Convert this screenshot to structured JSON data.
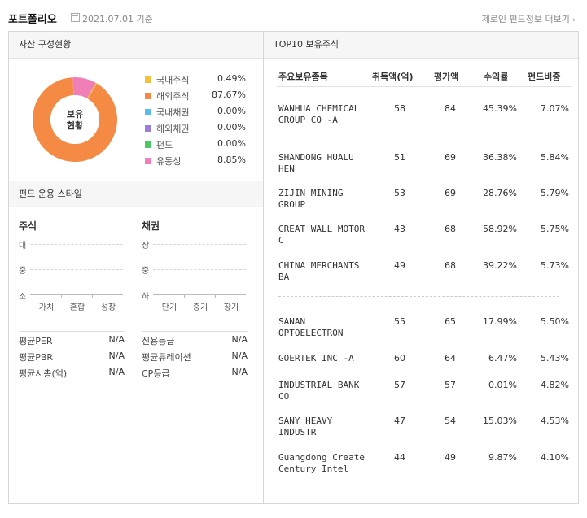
{
  "header": {
    "title": "포트폴리오",
    "date": "2021.07.01",
    "date_suffix": "기준",
    "more_link": "제로인 펀드정보 더보기"
  },
  "asset": {
    "title": "자산 구성현황",
    "donut_label_1": "보유",
    "donut_label_2": "현황",
    "items": [
      {
        "name": "국내주식",
        "value": "0.49%",
        "pct": 0.49,
        "color": "#f2c33a"
      },
      {
        "name": "해외주식",
        "value": "87.67%",
        "pct": 87.67,
        "color": "#f48a43"
      },
      {
        "name": "국내채권",
        "value": "0.00%",
        "pct": 0.0,
        "color": "#58bde8"
      },
      {
        "name": "해외채권",
        "value": "0.00%",
        "pct": 0.0,
        "color": "#9a7fd8"
      },
      {
        "name": "펀드",
        "value": "0.00%",
        "pct": 0.0,
        "color": "#4bc765"
      },
      {
        "name": "유동성",
        "value": "8.85%",
        "pct": 8.85,
        "color": "#f07fb8"
      }
    ]
  },
  "style": {
    "title": "펀드 운용 스타일",
    "stock": {
      "title": "주식",
      "y": [
        "대",
        "중",
        "소"
      ],
      "x": [
        "가치",
        "혼합",
        "성장"
      ]
    },
    "bond": {
      "title": "채권",
      "y": [
        "상",
        "중",
        "하"
      ],
      "x": [
        "단기",
        "중기",
        "장기"
      ]
    },
    "stock_metrics": [
      {
        "k": "평균PER",
        "v": "N/A"
      },
      {
        "k": "평균PBR",
        "v": "N/A"
      },
      {
        "k": "평균시총(억)",
        "v": "N/A"
      }
    ],
    "bond_metrics": [
      {
        "k": "신용등급",
        "v": "N/A"
      },
      {
        "k": "평균듀레이션",
        "v": "N/A"
      },
      {
        "k": "CP등급",
        "v": "N/A"
      }
    ]
  },
  "top10": {
    "title": "TOP10 보유주식",
    "columns": [
      "주요보유종목",
      "취득액(억)",
      "평가액",
      "수익률",
      "펀드비중"
    ],
    "rows": [
      {
        "name": "WANHUA CHEMICAL GROUP CO -A",
        "cost": "58",
        "value": "84",
        "ret": "45.39%",
        "weight": "7.07%"
      },
      {
        "name": "SHANDONG HUALU HEN",
        "cost": "51",
        "value": "69",
        "ret": "36.38%",
        "weight": "5.84%"
      },
      {
        "name": "ZIJIN MINING GROUP",
        "cost": "53",
        "value": "69",
        "ret": "28.76%",
        "weight": "5.79%"
      },
      {
        "name": "GREAT WALL MOTOR C",
        "cost": "43",
        "value": "68",
        "ret": "58.92%",
        "weight": "5.75%"
      },
      {
        "name": "CHINA MERCHANTS BA",
        "cost": "49",
        "value": "68",
        "ret": "39.22%",
        "weight": "5.73%"
      },
      {
        "name": "SANAN OPTOELECTRON",
        "cost": "55",
        "value": "65",
        "ret": "17.99%",
        "weight": "5.50%"
      },
      {
        "name": "GOERTEK INC -A",
        "cost": "60",
        "value": "64",
        "ret": "6.47%",
        "weight": "5.43%"
      },
      {
        "name": "INDUSTRIAL BANK CO",
        "cost": "57",
        "value": "57",
        "ret": "0.01%",
        "weight": "4.82%"
      },
      {
        "name": "SANY HEAVY INDUSTR",
        "cost": "47",
        "value": "54",
        "ret": "15.03%",
        "weight": "4.53%"
      },
      {
        "name": "Guangdong Create Century Intel",
        "cost": "44",
        "value": "49",
        "ret": "9.87%",
        "weight": "4.10%"
      }
    ]
  }
}
